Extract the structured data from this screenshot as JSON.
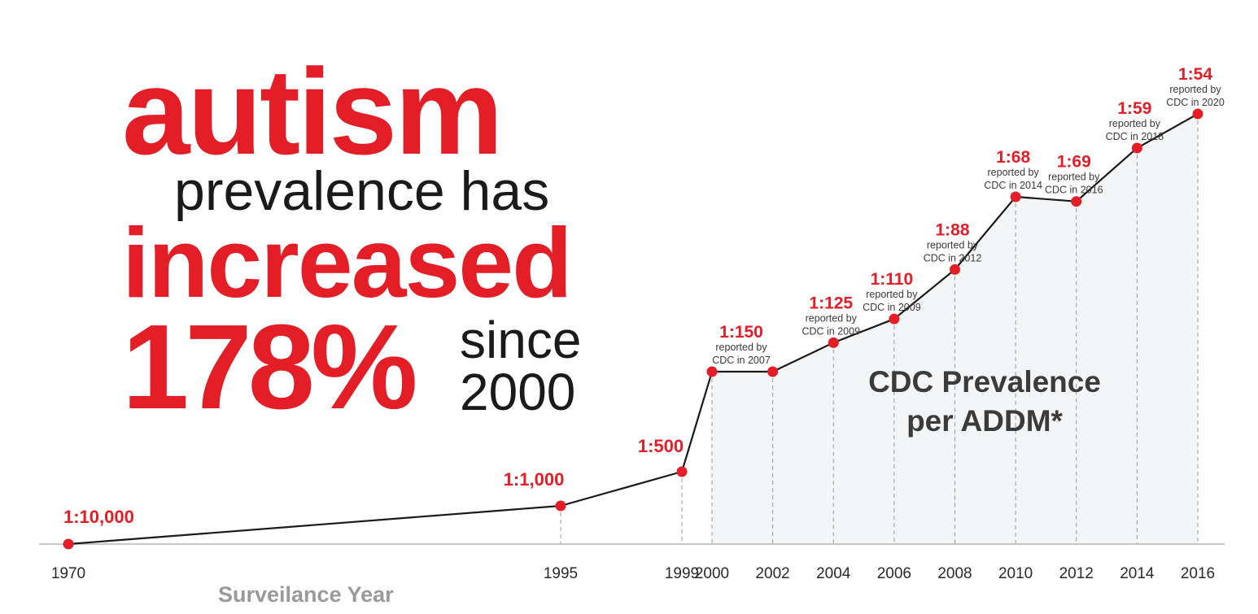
{
  "headline": {
    "word_1": "autism",
    "line_2": "prevalence has",
    "word_3": "increased",
    "percent": "178%",
    "since": "since",
    "year": "2000"
  },
  "colors": {
    "accent_red": "#e41e26",
    "text_dark": "#1a1a1a",
    "line": "#1a1a1a",
    "axis_title_gray": "#9a9a9a",
    "area_fill": "#f4f5f7"
  },
  "chart_data": {
    "type": "line",
    "title": "",
    "xlabel": "Surveilance Year",
    "ylabel": "",
    "area_label": [
      "CDC Prevalence",
      "per ADDM*"
    ],
    "x_ticks": [
      "1970",
      "1995",
      "1999",
      "2000",
      "2002",
      "2004",
      "2006",
      "2008",
      "2010",
      "2012",
      "2014",
      "2016"
    ],
    "series": [
      {
        "points": [
          {
            "x": 1970,
            "ratio": 10000,
            "label": "1:10,000",
            "note": []
          },
          {
            "x": 1995,
            "ratio": 1000,
            "label": "1:1,000",
            "note": []
          },
          {
            "x": 1999,
            "ratio": 500,
            "label": "1:500",
            "note": []
          },
          {
            "x": 2000,
            "ratio": 150,
            "label": "1:150",
            "note": [
              "reported by",
              "CDC in 2007"
            ]
          },
          {
            "x": 2002,
            "ratio": 150,
            "label": "",
            "note": []
          },
          {
            "x": 2004,
            "ratio": 125,
            "label": "1:125",
            "note": [
              "reported by",
              "CDC in 2009"
            ]
          },
          {
            "x": 2006,
            "ratio": 110,
            "label": "1:110",
            "note": [
              "reported by",
              "CDC in 2009"
            ]
          },
          {
            "x": 2008,
            "ratio": 88,
            "label": "1:88",
            "note": [
              "reported by",
              "CDC in 2012"
            ]
          },
          {
            "x": 2010,
            "ratio": 68,
            "label": "1:68",
            "note": [
              "reported by",
              "CDC in 2014"
            ]
          },
          {
            "x": 2012,
            "ratio": 69,
            "label": "1:69",
            "note": [
              "reported by",
              "CDC in 2016"
            ]
          },
          {
            "x": 2014,
            "ratio": 59,
            "label": "1:59",
            "note": [
              "reported by",
              "CDC in 2018"
            ]
          },
          {
            "x": 2016,
            "ratio": 54,
            "label": "1:54",
            "note": [
              "reported by",
              "CDC in 2020"
            ]
          }
        ]
      }
    ],
    "grid": false,
    "legend": "none"
  }
}
